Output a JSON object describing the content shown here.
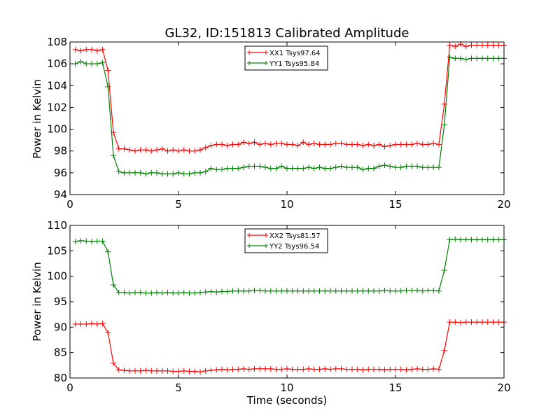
{
  "colors": {
    "red": "#ff0000",
    "green": "#008000",
    "axis": "#000000",
    "background": "#ffffff"
  },
  "chart_data": [
    {
      "type": "line",
      "title": "GL32, ID:151813 Calibrated Amplitude",
      "xlabel": "",
      "ylabel": "Power in Kelvin",
      "xlim": [
        0,
        20
      ],
      "ylim": [
        94,
        108
      ],
      "xticks": [
        0,
        5,
        10,
        15,
        20
      ],
      "yticks": [
        94,
        96,
        98,
        100,
        102,
        104,
        106,
        108
      ],
      "xtick_labels": [
        "0",
        "5",
        "10",
        "15",
        "20"
      ],
      "ytick_labels": [
        "94",
        "96",
        "98",
        "100",
        "102",
        "104",
        "106",
        "108"
      ],
      "grid": false,
      "legend_position": "upper-center",
      "x": [
        0.25,
        0.5,
        0.75,
        1.0,
        1.25,
        1.5,
        1.75,
        2.0,
        2.25,
        2.5,
        2.75,
        3.0,
        3.25,
        3.5,
        3.75,
        4.0,
        4.25,
        4.5,
        4.75,
        5.0,
        5.25,
        5.5,
        5.75,
        6.0,
        6.25,
        6.5,
        6.75,
        7.0,
        7.25,
        7.5,
        7.75,
        8.0,
        8.25,
        8.5,
        8.75,
        9.0,
        9.25,
        9.5,
        9.75,
        10.0,
        10.25,
        10.5,
        10.75,
        11.0,
        11.25,
        11.5,
        11.75,
        12.0,
        12.25,
        12.5,
        12.75,
        13.0,
        13.25,
        13.5,
        13.75,
        14.0,
        14.25,
        14.5,
        14.75,
        15.0,
        15.25,
        15.5,
        15.75,
        16.0,
        16.25,
        16.5,
        16.75,
        17.0,
        17.25,
        17.5,
        17.75,
        18.0,
        18.25,
        18.5,
        18.75,
        19.0,
        19.25,
        19.5,
        19.75,
        20.0
      ],
      "series": [
        {
          "name": "XX1 Tsys97.64",
          "color": "#ff0000",
          "values": [
            107.3,
            107.2,
            107.3,
            107.3,
            107.2,
            107.3,
            105.4,
            99.7,
            98.2,
            98.2,
            98.1,
            98.0,
            98.1,
            98.1,
            98.0,
            98.1,
            98.2,
            98.0,
            98.1,
            98.0,
            98.1,
            98.0,
            98.0,
            98.1,
            98.3,
            98.5,
            98.6,
            98.6,
            98.5,
            98.6,
            98.6,
            98.8,
            98.7,
            98.8,
            98.6,
            98.7,
            98.6,
            98.7,
            98.7,
            98.6,
            98.6,
            98.5,
            98.8,
            98.6,
            98.7,
            98.6,
            98.6,
            98.6,
            98.7,
            98.7,
            98.6,
            98.6,
            98.6,
            98.5,
            98.6,
            98.5,
            98.6,
            98.4,
            98.5,
            98.6,
            98.6,
            98.6,
            98.6,
            98.7,
            98.6,
            98.6,
            98.7,
            98.6,
            102.3,
            107.7,
            107.6,
            107.8,
            107.6,
            107.7,
            107.7,
            107.7,
            107.7,
            107.7,
            107.7,
            107.7
          ]
        },
        {
          "name": "YY1 Tsys95.84",
          "color": "#008000",
          "values": [
            106.0,
            106.2,
            106.0,
            106.0,
            106.0,
            106.1,
            103.9,
            97.6,
            96.1,
            96.0,
            96.0,
            96.0,
            96.0,
            95.9,
            96.0,
            96.0,
            95.9,
            95.9,
            95.9,
            96.0,
            95.9,
            95.9,
            96.0,
            96.0,
            96.1,
            96.4,
            96.3,
            96.3,
            96.4,
            96.4,
            96.4,
            96.5,
            96.6,
            96.6,
            96.6,
            96.5,
            96.4,
            96.4,
            96.6,
            96.4,
            96.4,
            96.4,
            96.4,
            96.5,
            96.4,
            96.5,
            96.4,
            96.4,
            96.5,
            96.6,
            96.5,
            96.5,
            96.5,
            96.3,
            96.4,
            96.4,
            96.6,
            96.7,
            96.6,
            96.5,
            96.5,
            96.6,
            96.6,
            96.6,
            96.5,
            96.5,
            96.5,
            96.5,
            100.4,
            106.6,
            106.5,
            106.5,
            106.4,
            106.5,
            106.5,
            106.5,
            106.5,
            106.5,
            106.5,
            106.5
          ]
        }
      ]
    },
    {
      "type": "line",
      "title": "",
      "xlabel": "Time (seconds)",
      "ylabel": "Power in Kelvin",
      "xlim": [
        0,
        20
      ],
      "ylim": [
        80,
        110
      ],
      "xticks": [
        0,
        5,
        10,
        15,
        20
      ],
      "yticks": [
        80,
        85,
        90,
        95,
        100,
        105,
        110
      ],
      "xtick_labels": [
        "0",
        "5",
        "10",
        "15",
        "20"
      ],
      "ytick_labels": [
        "80",
        "85",
        "90",
        "95",
        "100",
        "105",
        "110"
      ],
      "grid": false,
      "legend_position": "upper-center",
      "x": [
        0.25,
        0.5,
        0.75,
        1.0,
        1.25,
        1.5,
        1.75,
        2.0,
        2.25,
        2.5,
        2.75,
        3.0,
        3.25,
        3.5,
        3.75,
        4.0,
        4.25,
        4.5,
        4.75,
        5.0,
        5.25,
        5.5,
        5.75,
        6.0,
        6.25,
        6.5,
        6.75,
        7.0,
        7.25,
        7.5,
        7.75,
        8.0,
        8.25,
        8.5,
        8.75,
        9.0,
        9.25,
        9.5,
        9.75,
        10.0,
        10.25,
        10.5,
        10.75,
        11.0,
        11.25,
        11.5,
        11.75,
        12.0,
        12.25,
        12.5,
        12.75,
        13.0,
        13.25,
        13.5,
        13.75,
        14.0,
        14.25,
        14.5,
        14.75,
        15.0,
        15.25,
        15.5,
        15.75,
        16.0,
        16.25,
        16.5,
        16.75,
        17.0,
        17.25,
        17.5,
        17.75,
        18.0,
        18.25,
        18.5,
        18.75,
        19.0,
        19.25,
        19.5,
        19.75,
        20.0
      ],
      "series": [
        {
          "name": "XX2 Tsys81.57",
          "color": "#ff0000",
          "values": [
            90.6,
            90.6,
            90.6,
            90.7,
            90.6,
            90.7,
            88.9,
            82.9,
            81.6,
            81.5,
            81.4,
            81.4,
            81.4,
            81.5,
            81.4,
            81.4,
            81.4,
            81.4,
            81.3,
            81.3,
            81.4,
            81.3,
            81.3,
            81.2,
            81.4,
            81.5,
            81.6,
            81.7,
            81.6,
            81.7,
            81.7,
            81.8,
            81.7,
            81.8,
            81.8,
            81.8,
            81.8,
            81.7,
            81.7,
            81.8,
            81.7,
            81.7,
            81.7,
            81.8,
            81.7,
            81.7,
            81.8,
            81.7,
            81.8,
            81.8,
            81.7,
            81.7,
            81.7,
            81.6,
            81.7,
            81.7,
            81.7,
            81.6,
            81.7,
            81.7,
            81.7,
            81.6,
            81.7,
            81.8,
            81.7,
            81.7,
            81.8,
            81.7,
            85.4,
            91.0,
            91.0,
            90.9,
            91.0,
            91.0,
            91.0,
            91.0,
            91.0,
            91.0,
            91.0,
            91.0
          ]
        },
        {
          "name": "YY2 Tsys96.54",
          "color": "#008000",
          "values": [
            106.8,
            107.0,
            106.9,
            106.8,
            106.9,
            106.9,
            104.8,
            98.3,
            96.8,
            96.8,
            96.7,
            96.8,
            96.8,
            96.7,
            96.7,
            96.8,
            96.7,
            96.8,
            96.7,
            96.7,
            96.8,
            96.7,
            96.7,
            96.8,
            96.9,
            97.0,
            96.9,
            97.0,
            97.0,
            97.1,
            97.1,
            97.1,
            97.1,
            97.2,
            97.2,
            97.1,
            97.1,
            97.1,
            97.1,
            97.1,
            97.1,
            97.1,
            97.1,
            97.1,
            97.1,
            97.1,
            97.1,
            97.1,
            97.1,
            97.1,
            97.1,
            97.1,
            97.1,
            97.1,
            97.1,
            97.1,
            97.1,
            97.2,
            97.1,
            97.1,
            97.1,
            97.2,
            97.2,
            97.2,
            97.1,
            97.2,
            97.2,
            97.1,
            101.2,
            107.2,
            107.3,
            107.2,
            107.2,
            107.2,
            107.2,
            107.2,
            107.2,
            107.2,
            107.2,
            107.2
          ]
        }
      ]
    }
  ]
}
